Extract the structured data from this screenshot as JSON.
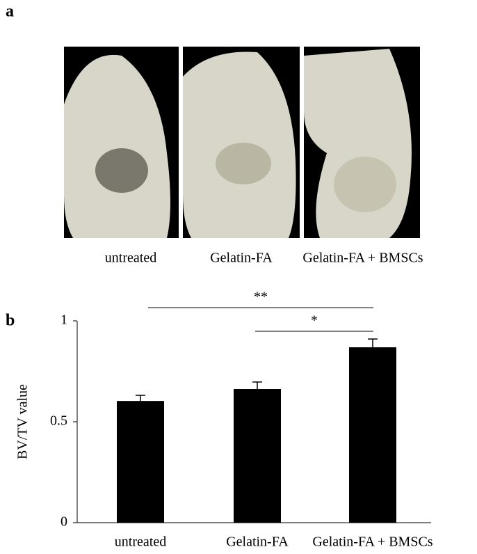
{
  "panel_a": {
    "label": "a",
    "captions": [
      "untreated",
      "Gelatin-FA",
      "Gelatin-FA + BMSCs"
    ]
  },
  "panel_b": {
    "label": "b"
  },
  "chart_data": {
    "type": "bar",
    "y_label": "BV/TV value",
    "categories": [
      "untreated",
      "Gelatin-FA",
      "Gelatin-FA + BMSCs"
    ],
    "values": [
      0.603,
      0.662,
      0.869
    ],
    "errors": [
      0.028,
      0.035,
      0.041
    ],
    "color": "#000000",
    "ylim": [
      0,
      1
    ],
    "yticks": [
      0,
      0.5,
      1
    ],
    "grid": false,
    "annotations": [
      {
        "text": "**"
      },
      {
        "text": "*"
      }
    ]
  }
}
